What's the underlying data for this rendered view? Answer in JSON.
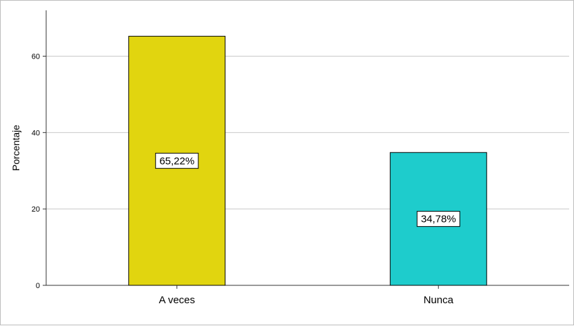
{
  "chart_data": {
    "type": "bar",
    "title": "",
    "xlabel": "",
    "ylabel": "Porcentaje",
    "categories": [
      "A veces",
      "Nunca"
    ],
    "values": [
      65.22,
      34.78
    ],
    "data_labels": [
      "65,22%",
      "34,78%"
    ],
    "colors": [
      "#e1d50f",
      "#1ecccc"
    ],
    "ylim": [
      0,
      72
    ],
    "yticks": [
      0,
      20,
      40,
      60
    ],
    "grid": true,
    "legend": "none"
  }
}
